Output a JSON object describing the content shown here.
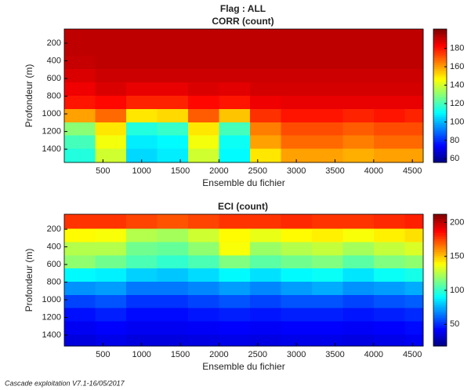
{
  "title": "Flag : ALL",
  "footer": "Cascade exploitation V7.1-16/05/2017",
  "chart_data": [
    {
      "type": "heatmap",
      "title": "CORR (count)",
      "xlabel": "Ensemble du fichier",
      "ylabel": "Profondeur (m)",
      "colormap": "jet",
      "x": [
        200,
        600,
        1000,
        1400,
        1800,
        2200,
        2600,
        3000,
        3400,
        3800,
        4200,
        4600
      ],
      "y": [
        120,
        270,
        420,
        570,
        720,
        870,
        1020,
        1170,
        1320,
        1470
      ],
      "z": [
        [
          192,
          192,
          192,
          192,
          192,
          192,
          192,
          192,
          192,
          192,
          192,
          192
        ],
        [
          192,
          192,
          192,
          192,
          192,
          192,
          192,
          192,
          192,
          192,
          192,
          192
        ],
        [
          191,
          192,
          192,
          192,
          192,
          192,
          192,
          192,
          192,
          192,
          192,
          192
        ],
        [
          188,
          190,
          190,
          190,
          190,
          190,
          190,
          190,
          190,
          190,
          190,
          190
        ],
        [
          185,
          188,
          186,
          186,
          188,
          187,
          189,
          189,
          189,
          189,
          189,
          189
        ],
        [
          180,
          182,
          178,
          178,
          182,
          180,
          185,
          186,
          186,
          186,
          186,
          186
        ],
        [
          160,
          168,
          150,
          152,
          170,
          155,
          176,
          180,
          180,
          178,
          180,
          178
        ],
        [
          130,
          150,
          115,
          118,
          150,
          120,
          165,
          172,
          172,
          170,
          172,
          172
        ],
        [
          120,
          145,
          108,
          110,
          145,
          112,
          160,
          168,
          168,
          165,
          168,
          168
        ],
        [
          115,
          140,
          105,
          108,
          140,
          110,
          150,
          160,
          160,
          158,
          160,
          160
        ]
      ],
      "xlim": [
        0,
        4640
      ],
      "ylim": [
        40,
        1550
      ],
      "xticks": [
        500,
        1000,
        1500,
        2000,
        2500,
        3000,
        3500,
        4000,
        4500
      ],
      "yticks": [
        200,
        400,
        600,
        800,
        1000,
        1200,
        1400
      ],
      "clim": [
        56,
        201
      ],
      "cticks": [
        60,
        80,
        100,
        120,
        140,
        160,
        180
      ]
    },
    {
      "type": "heatmap",
      "title": "ECI (count)",
      "xlabel": "Ensemble du fichier",
      "ylabel": "Profondeur (m)",
      "colormap": "jet",
      "x": [
        200,
        600,
        1000,
        1400,
        1800,
        2200,
        2600,
        3000,
        3400,
        3800,
        4200,
        4600
      ],
      "y": [
        120,
        270,
        420,
        570,
        720,
        870,
        1020,
        1170,
        1320,
        1470
      ],
      "z": [
        [
          178,
          178,
          175,
          172,
          175,
          178,
          178,
          180,
          178,
          178,
          180,
          182
        ],
        [
          140,
          138,
          125,
          122,
          130,
          140,
          135,
          140,
          142,
          138,
          142,
          145
        ],
        [
          125,
          125,
          112,
          110,
          118,
          138,
          120,
          125,
          128,
          122,
          128,
          132
        ],
        [
          118,
          112,
          105,
          100,
          105,
          115,
          108,
          112,
          115,
          108,
          115,
          118
        ],
        [
          90,
          88,
          82,
          80,
          84,
          90,
          85,
          90,
          92,
          86,
          92,
          95
        ],
        [
          70,
          72,
          65,
          65,
          68,
          72,
          68,
          72,
          75,
          70,
          72,
          75
        ],
        [
          55,
          58,
          52,
          52,
          55,
          58,
          55,
          58,
          58,
          55,
          58,
          60
        ],
        [
          45,
          48,
          44,
          44,
          46,
          48,
          46,
          48,
          48,
          46,
          48,
          50
        ],
        [
          40,
          42,
          40,
          40,
          41,
          42,
          41,
          42,
          42,
          41,
          42,
          44
        ],
        [
          36,
          38,
          36,
          36,
          37,
          38,
          37,
          38,
          38,
          37,
          38,
          40
        ]
      ],
      "xlim": [
        0,
        4640
      ],
      "ylim": [
        30,
        1525
      ],
      "xticks": [
        500,
        1000,
        1500,
        2000,
        2500,
        3000,
        3500,
        4000,
        4500
      ],
      "yticks": [
        200,
        400,
        600,
        800,
        1000,
        1200,
        1400
      ],
      "clim": [
        18,
        212
      ],
      "cticks": [
        50,
        100,
        150,
        200
      ]
    }
  ]
}
